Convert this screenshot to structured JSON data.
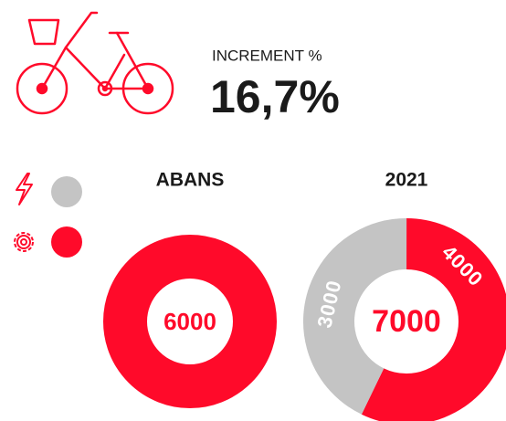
{
  "header": {
    "label": "INCREMENT %",
    "value": "16,7%"
  },
  "chart_data": [
    {
      "type": "donut",
      "title": "ABANS",
      "total": 6000,
      "values": [
        6000
      ],
      "colors": [
        "#ff0a2a"
      ]
    },
    {
      "type": "donut",
      "title": "2021",
      "total": 7000,
      "values": [
        4000,
        3000
      ],
      "colors": [
        "#ff0a2a",
        "#c4c4c4"
      ],
      "value_labels": [
        "4000",
        "3000"
      ]
    }
  ]
}
